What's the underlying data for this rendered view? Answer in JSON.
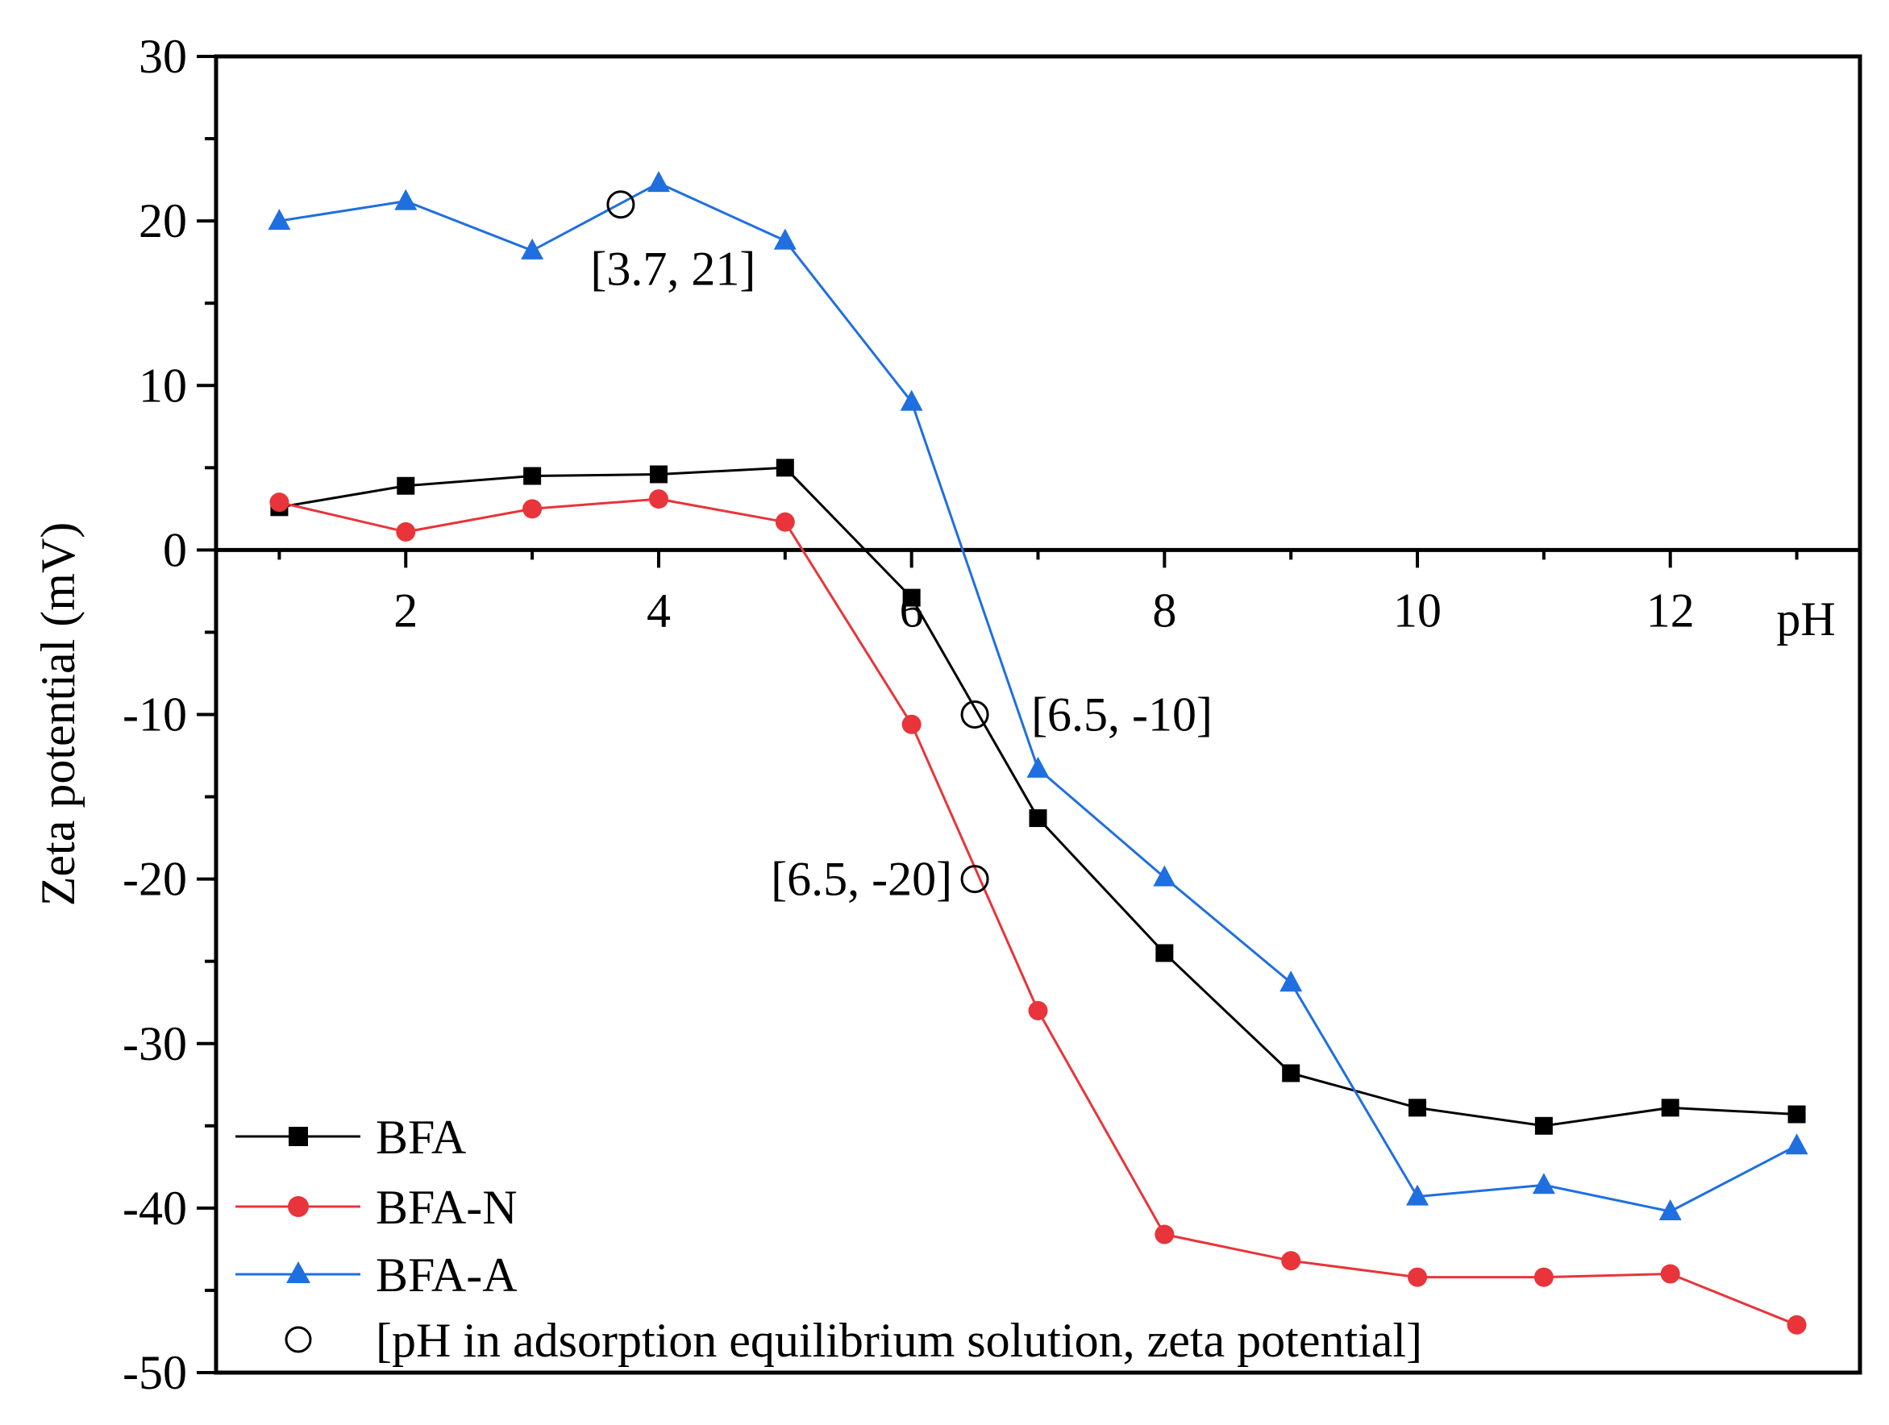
{
  "chart_data": {
    "type": "line",
    "title": "",
    "xlabel": "pH",
    "ylabel": "Zeta potential (mV)",
    "xlim": [
      0.5,
      13.5
    ],
    "ylim": [
      -50,
      30
    ],
    "x_ticks": [
      2,
      4,
      6,
      8,
      10,
      12
    ],
    "x_tick_labels": [
      "2",
      "4",
      "6",
      "8",
      "10",
      "12"
    ],
    "y_ticks": [
      30,
      20,
      10,
      0,
      -10,
      -20,
      -30,
      -40,
      -50
    ],
    "y_tick_labels": [
      "30",
      "20",
      "10",
      "0",
      "-10",
      "-20",
      "-30",
      "-40",
      "-50"
    ],
    "x": [
      1,
      2,
      3,
      4,
      5,
      6,
      7,
      8,
      9,
      10,
      11,
      12,
      13
    ],
    "series": [
      {
        "name": "BFA",
        "color": "#000000",
        "marker": "square",
        "values": [
          2.6,
          3.9,
          4.5,
          4.6,
          5.0,
          -2.9,
          -16.3,
          -24.5,
          -31.8,
          -33.9,
          -35.0,
          -33.9,
          -34.3
        ]
      },
      {
        "name": "BFA-N",
        "color": "#e8343a",
        "marker": "circle",
        "values": [
          2.9,
          1.1,
          2.5,
          3.1,
          1.7,
          -10.6,
          -28.0,
          -41.6,
          -43.2,
          -44.2,
          -44.2,
          -44.0,
          -47.1
        ]
      },
      {
        "name": "BFA-A",
        "color": "#1f6fe0",
        "marker": "triangle",
        "values": [
          20.0,
          21.2,
          18.2,
          22.3,
          18.8,
          9.0,
          -13.3,
          -19.9,
          -26.3,
          -39.3,
          -38.6,
          -40.2,
          -36.2
        ]
      }
    ],
    "equilibrium_points": [
      {
        "x": 3.7,
        "y": 21,
        "label": "[3.7, 21]",
        "label_position": "below"
      },
      {
        "x": 6.5,
        "y": -10,
        "label": "[6.5, -10]",
        "label_position": "right"
      },
      {
        "x": 6.5,
        "y": -20,
        "label": "[6.5, -20]",
        "label_position": "left"
      }
    ],
    "legend": {
      "position": "bottom-left",
      "entries": [
        "BFA",
        "BFA-N",
        "BFA-A",
        "[pH in adsorption equilibrium solution, zeta potential]"
      ]
    },
    "grid": false
  }
}
